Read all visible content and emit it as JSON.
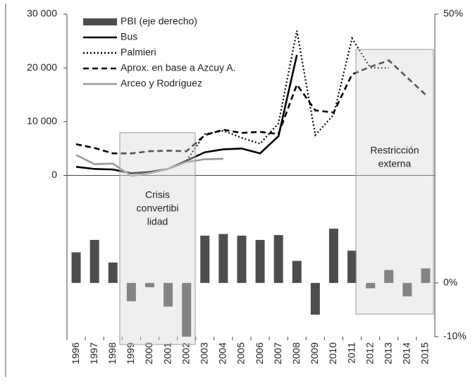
{
  "chart_data": {
    "type": "bar-line",
    "categories": [
      "1996",
      "1997",
      "1998",
      "1999",
      "2000",
      "2001",
      "2002",
      "2003",
      "2004",
      "2005",
      "2006",
      "2007",
      "2008",
      "2009",
      "2010",
      "2011",
      "2012",
      "2013",
      "2014",
      "2015"
    ],
    "ylim": [
      -30000,
      30000
    ],
    "yticks": [
      {
        "value": 0,
        "label": "0"
      },
      {
        "value": 10000,
        "label": "10 000"
      },
      {
        "value": 20000,
        "label": "20 000"
      },
      {
        "value": 30000,
        "label": "30 000"
      }
    ],
    "y2lim": [
      -10,
      50
    ],
    "y2ticks": [
      {
        "value": -10,
        "label": "-10%"
      },
      {
        "value": 0,
        "label": "0%"
      },
      {
        "value": 50,
        "label": "50%"
      }
    ],
    "series": [
      {
        "name": "PBI (eje derecho)",
        "type": "bar",
        "axis": "y2",
        "color": "#4d4d4d",
        "values": [
          5.7,
          8.0,
          3.8,
          -3.4,
          -0.8,
          -4.4,
          -10.0,
          8.8,
          9.1,
          8.8,
          8.0,
          8.9,
          4.1,
          -5.9,
          10.1,
          6.0,
          -1.0,
          2.4,
          -2.5,
          2.7
        ]
      },
      {
        "name": "Bus",
        "type": "line",
        "style": "solid",
        "color": "#000000",
        "values": [
          1600,
          1200,
          1100,
          400,
          650,
          1200,
          2750,
          4300,
          4850,
          5000,
          4100,
          7300,
          22400,
          null,
          null,
          null,
          null,
          null,
          null,
          null
        ]
      },
      {
        "name": "Palmieri",
        "type": "line",
        "style": "dotted",
        "color": "#000000",
        "values": [
          null,
          null,
          null,
          null,
          null,
          null,
          2750,
          7700,
          8300,
          7000,
          5900,
          9700,
          26900,
          7500,
          11300,
          25500,
          20000,
          20000,
          null,
          null
        ]
      },
      {
        "name": "Aprox. en base a Azcuy A.",
        "type": "line",
        "style": "dashed",
        "color": "#000000",
        "values": [
          5800,
          5100,
          4100,
          4100,
          4500,
          4600,
          4500,
          7500,
          8500,
          7900,
          8100,
          7700,
          16900,
          12100,
          11700,
          18800,
          20200,
          21400,
          18200,
          15000
        ]
      },
      {
        "name": "Arceo y Rodríguez",
        "type": "line",
        "style": "solid",
        "color": "#999999",
        "values": [
          3800,
          2100,
          2200,
          -100,
          400,
          1200,
          2500,
          3000,
          3100,
          null,
          null,
          null,
          null,
          null,
          null,
          null,
          null,
          null,
          null,
          null
        ]
      }
    ],
    "annotations": [
      {
        "text": [
          "Crisis",
          "convertibi",
          "lidad"
        ]
      },
      {
        "text": [
          "Restricción",
          "externa"
        ]
      }
    ]
  }
}
